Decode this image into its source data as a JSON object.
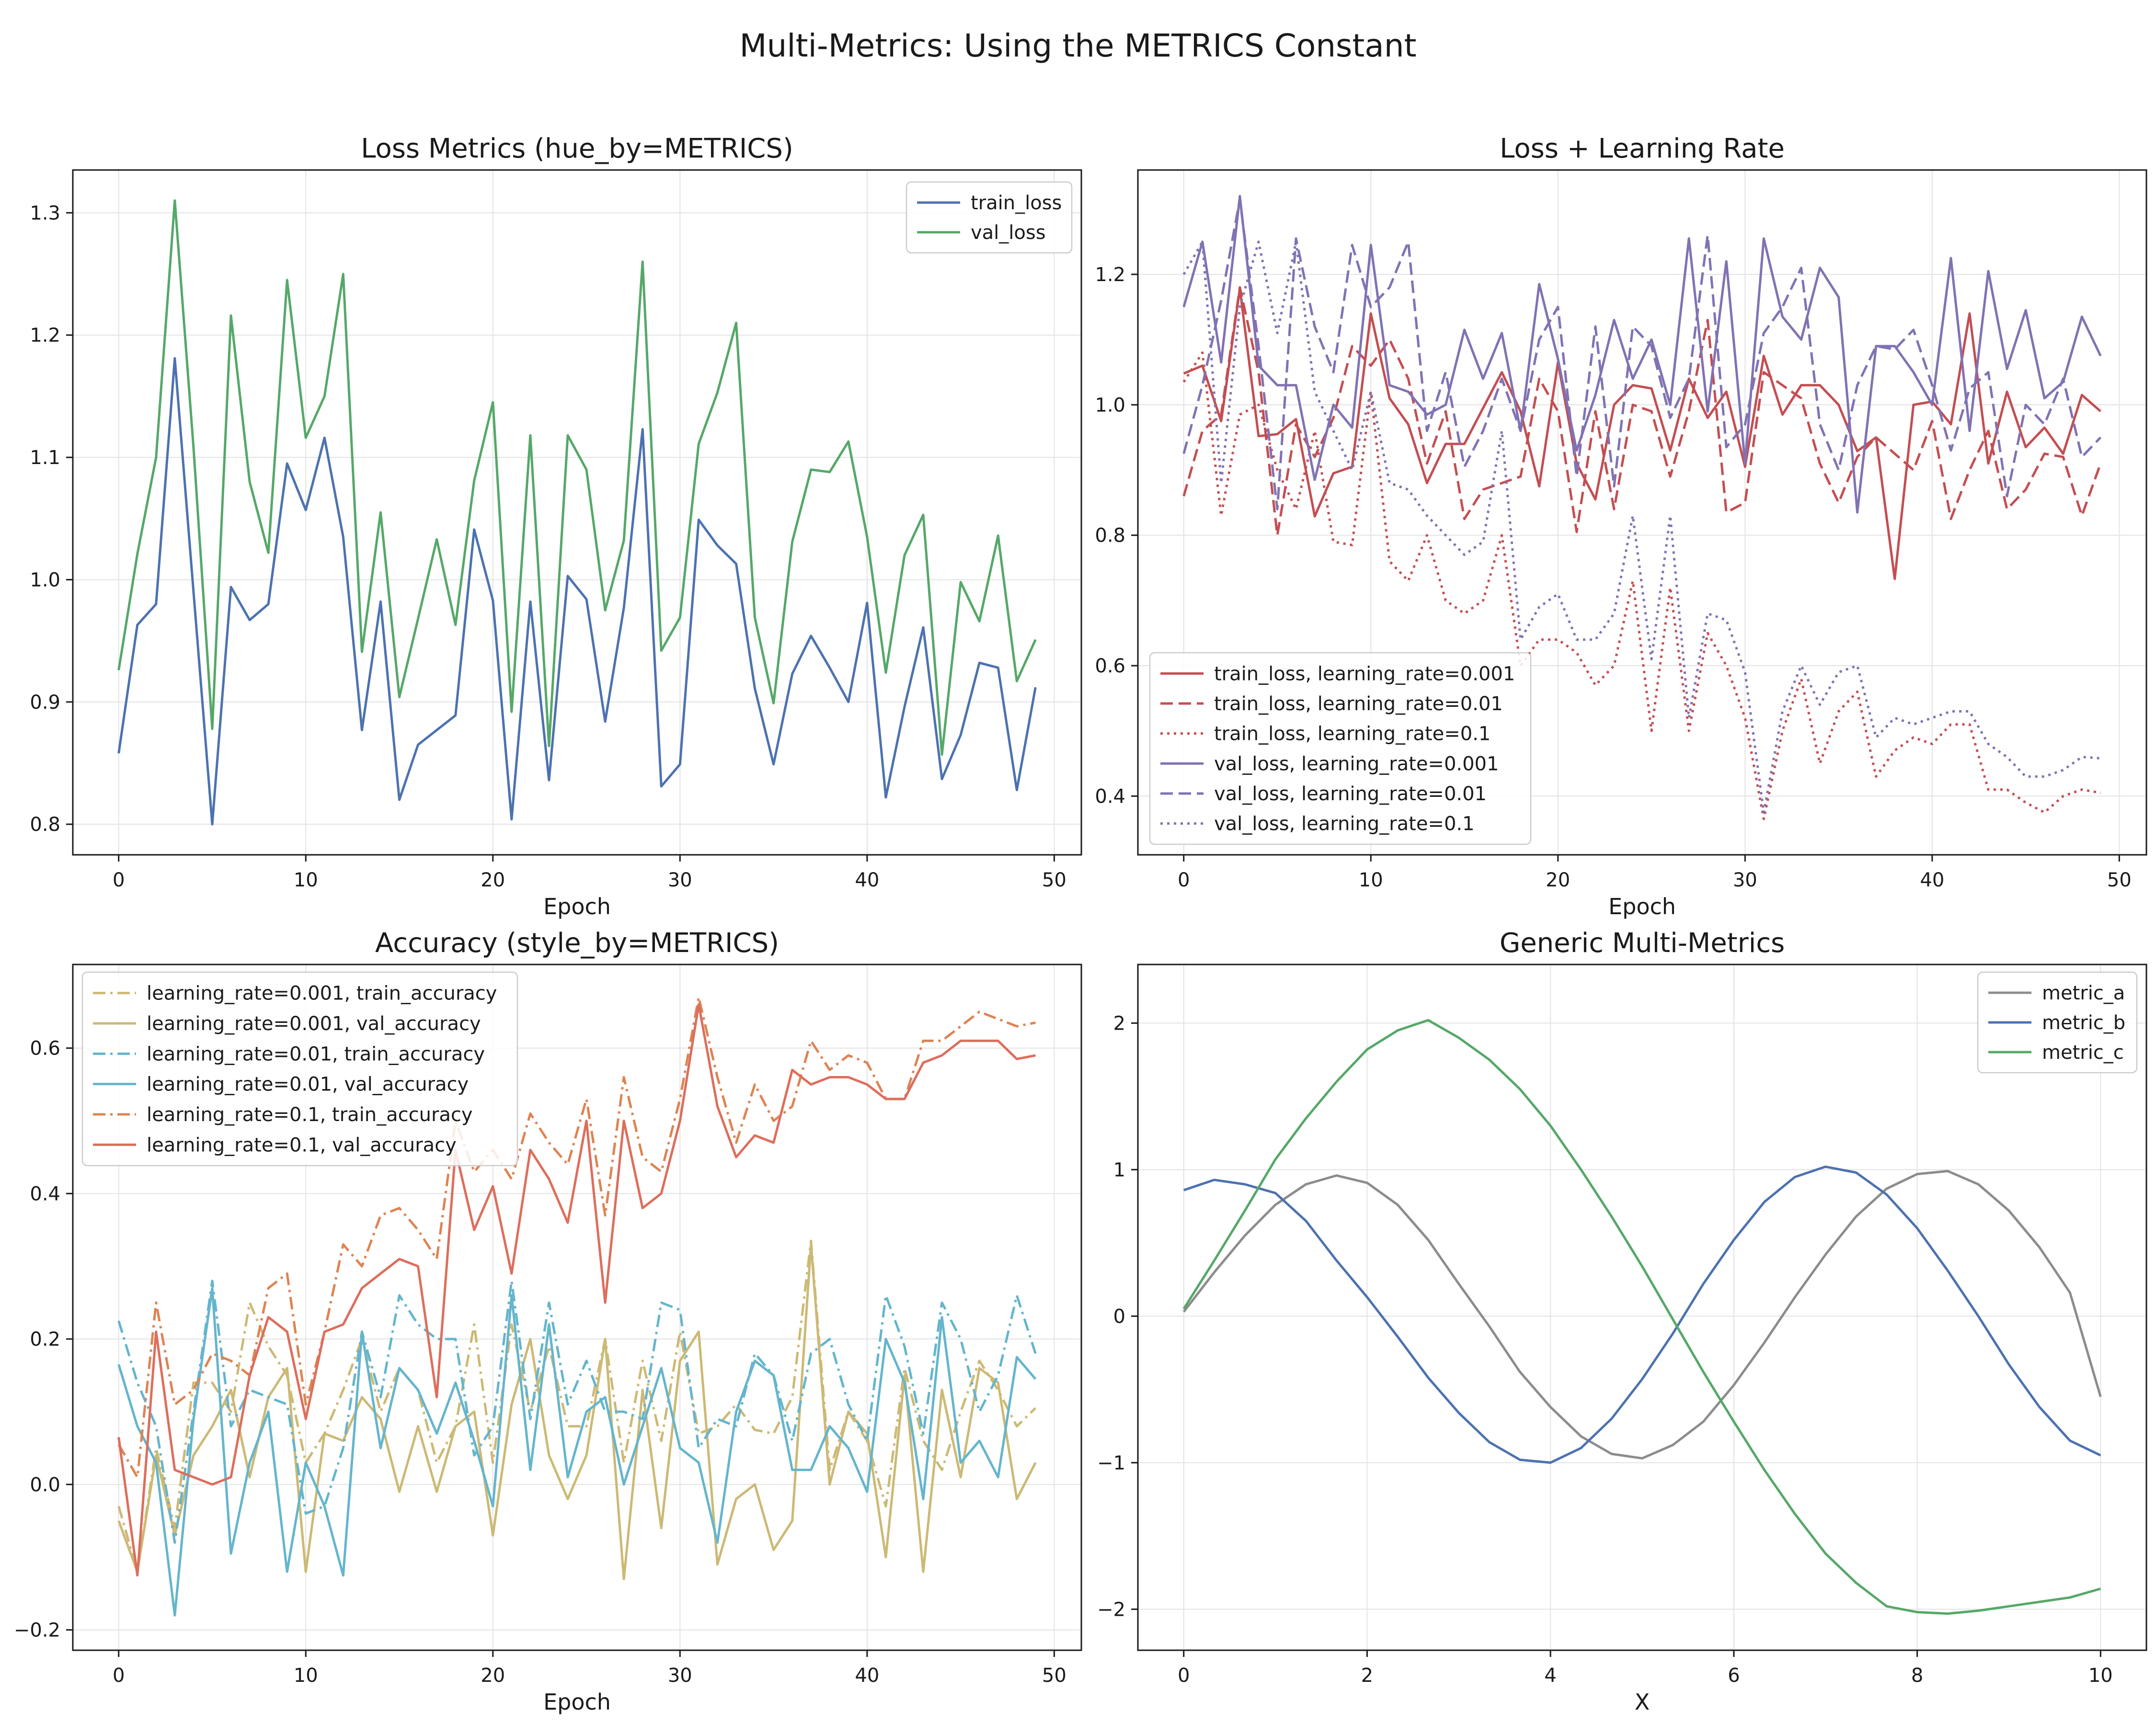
{
  "figure": {
    "title": "Multi-Metrics: Using the METRICS Constant"
  },
  "colors": {
    "blue": "#4c72b0",
    "green": "#55a868",
    "red": "#c44e52",
    "purple": "#8172b3",
    "gold": "#ccb974",
    "cyan": "#64b5cd",
    "salmon": "#dd8452",
    "coral": "#dd6e5c",
    "gray": "#8c8c8c"
  },
  "chart_data": [
    {
      "type": "line",
      "title": "Loss Metrics (hue_by=METRICS)",
      "xlabel": "Epoch",
      "ylabel": "",
      "xlim": [
        -2.45,
        51.45
      ],
      "ylim": [
        0.775,
        1.335
      ],
      "xticks": [
        0,
        10,
        20,
        30,
        40,
        50
      ],
      "yticks": [
        0.8,
        0.9,
        1.0,
        1.1,
        1.2,
        1.3
      ],
      "ytick_decimals": 1,
      "grid": true,
      "legend": "top-right",
      "series": [
        {
          "name": "train_loss",
          "color": "#4c72b0",
          "dash": "solid",
          "y": [
            0.858,
            0.963,
            0.98,
            1.181,
            0.99,
            0.8,
            0.994,
            0.967,
            0.98,
            1.095,
            1.057,
            1.116,
            1.035,
            0.877,
            0.982,
            0.82,
            0.865,
            0.877,
            0.889,
            1.041,
            0.983,
            0.804,
            0.982,
            0.836,
            1.003,
            0.984,
            0.884,
            0.977,
            1.123,
            0.831,
            0.849,
            1.049,
            1.028,
            1.013,
            0.911,
            0.849,
            0.923,
            0.954,
            0.928,
            0.9,
            0.981,
            0.822,
            0.896,
            0.961,
            0.837,
            0.873,
            0.932,
            0.928,
            0.828,
            0.912
          ]
        },
        {
          "name": "val_loss",
          "color": "#55a868",
          "dash": "solid",
          "y": [
            0.926,
            1.021,
            1.1,
            1.31,
            1.108,
            0.878,
            1.216,
            1.08,
            1.022,
            1.245,
            1.116,
            1.15,
            1.25,
            0.941,
            1.055,
            0.904,
            0.968,
            1.033,
            0.963,
            1.081,
            1.145,
            0.892,
            1.118,
            0.864,
            1.118,
            1.09,
            0.975,
            1.032,
            1.26,
            0.942,
            0.969,
            1.111,
            1.153,
            1.21,
            0.969,
            0.899,
            1.031,
            1.09,
            1.088,
            1.113,
            1.035,
            0.924,
            1.02,
            1.053,
            0.857,
            0.998,
            0.966,
            1.036,
            0.917,
            0.951
          ]
        }
      ]
    },
    {
      "type": "line",
      "title": "Loss + Learning Rate",
      "xlabel": "Epoch",
      "ylabel": "",
      "xlim": [
        -2.45,
        51.45
      ],
      "ylim": [
        0.31,
        1.36
      ],
      "xticks": [
        0,
        10,
        20,
        30,
        40,
        50
      ],
      "yticks": [
        0.4,
        0.6,
        0.8,
        1.0,
        1.2
      ],
      "ytick_decimals": 1,
      "grid": true,
      "legend": "bottom-left",
      "series": [
        {
          "name": "train_loss, learning_rate=0.001",
          "color": "#c44e52",
          "dash": "solid",
          "y": [
            1.048,
            1.06,
            0.975,
            1.178,
            0.952,
            0.955,
            0.978,
            0.829,
            0.895,
            0.905,
            1.14,
            1.01,
            0.97,
            0.88,
            0.94,
            0.94,
            0.995,
            1.05,
            0.99,
            0.875,
            1.065,
            0.91,
            0.855,
            1.0,
            1.03,
            1.025,
            0.93,
            1.04,
            0.98,
            1.02,
            0.905,
            1.075,
            0.985,
            1.03,
            1.03,
            1.0,
            0.929,
            0.95,
            0.733,
            1.0,
            1.005,
            0.97,
            1.14,
            0.91,
            1.02,
            0.935,
            0.965,
            0.925,
            1.015,
            0.99
          ]
        },
        {
          "name": "train_loss, learning_rate=0.01",
          "color": "#c44e52",
          "dash": "dashed",
          "y": [
            0.86,
            0.96,
            0.985,
            1.18,
            1.05,
            0.8,
            0.97,
            0.92,
            0.98,
            1.09,
            1.06,
            1.1,
            1.04,
            0.91,
            0.99,
            0.825,
            0.87,
            0.88,
            0.89,
            1.04,
            0.99,
            0.805,
            0.99,
            0.84,
            1.0,
            0.99,
            0.89,
            0.99,
            1.13,
            0.835,
            0.85,
            1.05,
            1.03,
            1.01,
            0.91,
            0.85,
            0.92,
            0.95,
            0.925,
            0.9,
            0.975,
            0.825,
            0.9,
            0.96,
            0.84,
            0.87,
            0.925,
            0.92,
            0.83,
            0.91
          ]
        },
        {
          "name": "train_loss, learning_rate=0.1",
          "color": "#c44e52",
          "dash": "dotted",
          "y": [
            1.035,
            1.08,
            0.83,
            0.985,
            1.0,
            0.9,
            0.84,
            0.96,
            0.79,
            0.785,
            1.02,
            0.76,
            0.73,
            0.8,
            0.7,
            0.68,
            0.7,
            0.8,
            0.6,
            0.64,
            0.64,
            0.62,
            0.57,
            0.6,
            0.73,
            0.5,
            0.72,
            0.5,
            0.65,
            0.6,
            0.52,
            0.365,
            0.5,
            0.58,
            0.45,
            0.53,
            0.56,
            0.43,
            0.47,
            0.49,
            0.48,
            0.51,
            0.51,
            0.41,
            0.41,
            0.39,
            0.375,
            0.4,
            0.41,
            0.405
          ]
        },
        {
          "name": "val_loss, learning_rate=0.001",
          "color": "#8172b3",
          "dash": "solid",
          "y": [
            1.15,
            1.25,
            1.065,
            1.32,
            1.06,
            1.03,
            1.03,
            0.885,
            1.0,
            0.965,
            1.245,
            1.03,
            1.02,
            0.985,
            1.0,
            1.115,
            1.04,
            1.11,
            0.96,
            1.185,
            1.07,
            0.93,
            1.015,
            1.13,
            1.04,
            1.1,
            1.0,
            1.255,
            0.99,
            1.22,
            0.91,
            1.255,
            1.135,
            1.1,
            1.21,
            1.165,
            0.835,
            1.09,
            1.09,
            1.05,
            1.0,
            1.225,
            0.96,
            1.205,
            1.055,
            1.145,
            1.01,
            1.035,
            1.135,
            1.075
          ]
        },
        {
          "name": "val_loss, learning_rate=0.01",
          "color": "#8172b3",
          "dash": "dashed",
          "y": [
            0.925,
            1.03,
            1.16,
            1.315,
            1.09,
            0.84,
            1.255,
            1.12,
            1.05,
            1.245,
            1.15,
            1.18,
            1.25,
            0.96,
            1.05,
            0.905,
            0.96,
            1.04,
            0.96,
            1.1,
            1.15,
            0.89,
            1.12,
            0.875,
            1.12,
            1.09,
            0.98,
            1.04,
            1.26,
            0.935,
            0.97,
            1.11,
            1.15,
            1.21,
            0.97,
            0.9,
            1.03,
            1.09,
            1.085,
            1.115,
            1.03,
            0.93,
            1.025,
            1.05,
            0.86,
            1.0,
            0.97,
            1.04,
            0.92,
            0.95
          ]
        },
        {
          "name": "val_loss, learning_rate=0.1",
          "color": "#8172b3",
          "dash": "dotted",
          "y": [
            1.2,
            1.25,
            0.88,
            1.15,
            1.25,
            1.11,
            1.25,
            1.02,
            0.96,
            0.9,
            1.02,
            0.88,
            0.87,
            0.83,
            0.8,
            0.77,
            0.79,
            0.96,
            0.64,
            0.69,
            0.71,
            0.64,
            0.64,
            0.68,
            0.83,
            0.61,
            0.83,
            0.52,
            0.68,
            0.67,
            0.59,
            0.375,
            0.53,
            0.6,
            0.54,
            0.59,
            0.6,
            0.49,
            0.52,
            0.51,
            0.52,
            0.53,
            0.53,
            0.48,
            0.46,
            0.43,
            0.43,
            0.44,
            0.46,
            0.458
          ]
        }
      ]
    },
    {
      "type": "line",
      "title": "Accuracy (style_by=METRICS)",
      "xlabel": "Epoch",
      "ylabel": "",
      "xlim": [
        -2.45,
        51.45
      ],
      "ylim": [
        -0.228,
        0.715
      ],
      "xticks": [
        0,
        10,
        20,
        30,
        40,
        50
      ],
      "yticks": [
        -0.2,
        0.0,
        0.2,
        0.4,
        0.6
      ],
      "ytick_decimals": 1,
      "grid": true,
      "legend": "top-left",
      "series": [
        {
          "name": "learning_rate=0.001, train_accuracy",
          "color": "#ccb974",
          "dash": "dashdot",
          "y": [
            -0.03,
            -0.12,
            0.05,
            -0.06,
            0.14,
            0.14,
            0.1,
            0.25,
            0.19,
            0.15,
            0.03,
            0.07,
            0.13,
            0.2,
            0.1,
            0.16,
            0.13,
            0.03,
            0.08,
            0.22,
            0.03,
            0.22,
            0.1,
            0.19,
            0.08,
            0.08,
            0.2,
            0.03,
            0.17,
            0.06,
            0.21,
            0.07,
            0.08,
            0.11,
            0.075,
            0.07,
            0.12,
            0.335,
            0.02,
            0.1,
            0.06,
            -0.03,
            0.16,
            0.06,
            0.02,
            0.1,
            0.17,
            0.13,
            0.08,
            0.105
          ]
        },
        {
          "name": "learning_rate=0.001, val_accuracy",
          "color": "#ccb974",
          "dash": "solid",
          "y": [
            -0.05,
            -0.12,
            0.04,
            -0.07,
            0.04,
            0.08,
            0.13,
            0.01,
            0.12,
            0.16,
            -0.12,
            0.07,
            0.06,
            0.12,
            0.09,
            -0.01,
            0.08,
            -0.01,
            0.08,
            0.1,
            -0.07,
            0.11,
            0.2,
            0.04,
            -0.02,
            0.04,
            0.2,
            -0.13,
            0.13,
            -0.06,
            0.17,
            0.21,
            -0.11,
            -0.02,
            0.0,
            -0.09,
            -0.05,
            0.33,
            0.0,
            0.1,
            0.07,
            -0.1,
            0.15,
            -0.12,
            0.13,
            0.01,
            0.16,
            0.14,
            -0.02,
            0.03
          ]
        },
        {
          "name": "learning_rate=0.01, train_accuracy",
          "color": "#64b5cd",
          "dash": "dashdot",
          "y": [
            0.225,
            0.14,
            0.08,
            -0.08,
            0.1,
            0.28,
            0.08,
            0.13,
            0.12,
            0.11,
            -0.04,
            -0.03,
            0.05,
            0.21,
            0.12,
            0.26,
            0.22,
            0.2,
            0.2,
            0.04,
            0.08,
            0.28,
            0.09,
            0.25,
            0.11,
            0.17,
            0.1,
            0.1,
            0.09,
            0.25,
            0.24,
            0.05,
            0.09,
            0.08,
            0.18,
            0.15,
            0.06,
            0.18,
            0.2,
            0.11,
            0.06,
            0.26,
            0.19,
            0.07,
            0.25,
            0.2,
            0.1,
            0.15,
            0.26,
            0.18
          ]
        },
        {
          "name": "learning_rate=0.01, val_accuracy",
          "color": "#64b5cd",
          "dash": "solid",
          "y": [
            0.165,
            0.08,
            0.03,
            -0.18,
            0.09,
            0.27,
            -0.095,
            0.03,
            0.1,
            -0.12,
            0.03,
            -0.03,
            -0.125,
            0.21,
            0.05,
            0.16,
            0.13,
            0.07,
            0.14,
            0.06,
            -0.03,
            0.26,
            0.02,
            0.22,
            0.01,
            0.1,
            0.12,
            0.0,
            0.08,
            0.16,
            0.05,
            0.03,
            -0.08,
            0.1,
            0.17,
            0.15,
            0.02,
            0.02,
            0.08,
            0.05,
            -0.01,
            0.2,
            0.14,
            -0.02,
            0.23,
            0.03,
            0.06,
            0.01,
            0.175,
            0.145
          ]
        },
        {
          "name": "learning_rate=0.1, train_accuracy",
          "color": "#dd8452",
          "dash": "dashdot",
          "y": [
            0.055,
            0.01,
            0.25,
            0.11,
            0.13,
            0.18,
            0.17,
            0.15,
            0.27,
            0.29,
            0.11,
            0.21,
            0.33,
            0.3,
            0.37,
            0.38,
            0.35,
            0.31,
            0.5,
            0.43,
            0.46,
            0.42,
            0.51,
            0.47,
            0.44,
            0.53,
            0.37,
            0.56,
            0.45,
            0.43,
            0.53,
            0.67,
            0.56,
            0.47,
            0.55,
            0.5,
            0.52,
            0.61,
            0.57,
            0.59,
            0.58,
            0.53,
            0.53,
            0.61,
            0.61,
            0.63,
            0.65,
            0.64,
            0.63,
            0.635
          ]
        },
        {
          "name": "learning_rate=0.1, val_accuracy",
          "color": "#dd6e5c",
          "dash": "solid",
          "y": [
            0.065,
            -0.125,
            0.21,
            0.02,
            0.01,
            0.0,
            0.01,
            0.15,
            0.23,
            0.21,
            0.09,
            0.21,
            0.22,
            0.27,
            0.29,
            0.31,
            0.3,
            0.12,
            0.46,
            0.35,
            0.41,
            0.29,
            0.46,
            0.42,
            0.36,
            0.5,
            0.25,
            0.5,
            0.38,
            0.4,
            0.5,
            0.66,
            0.52,
            0.45,
            0.48,
            0.47,
            0.57,
            0.55,
            0.56,
            0.56,
            0.55,
            0.53,
            0.53,
            0.58,
            0.59,
            0.61,
            0.61,
            0.61,
            0.585,
            0.59
          ]
        }
      ]
    },
    {
      "type": "line",
      "title": "Generic Multi-Metrics",
      "xlabel": "X",
      "ylabel": "",
      "xlim": [
        -0.5,
        10.5
      ],
      "ylim": [
        -2.28,
        2.4
      ],
      "xticks": [
        0,
        2,
        4,
        6,
        8,
        10
      ],
      "yticks": [
        -2,
        -1,
        0,
        1,
        2
      ],
      "ytick_decimals": 0,
      "grid": true,
      "legend": "top-right",
      "x_range": [
        0,
        10
      ],
      "series": [
        {
          "name": "metric_a",
          "color": "#8c8c8c",
          "dash": "solid",
          "y": [
            0.03,
            0.3,
            0.55,
            0.76,
            0.9,
            0.96,
            0.91,
            0.76,
            0.52,
            0.22,
            -0.07,
            -0.38,
            -0.62,
            -0.82,
            -0.94,
            -0.97,
            -0.88,
            -0.72,
            -0.47,
            -0.18,
            0.13,
            0.42,
            0.68,
            0.87,
            0.97,
            0.99,
            0.9,
            0.72,
            0.47,
            0.16,
            -0.55
          ]
        },
        {
          "name": "metric_b",
          "color": "#4c72b0",
          "dash": "solid",
          "y": [
            0.86,
            0.93,
            0.9,
            0.84,
            0.65,
            0.38,
            0.13,
            -0.14,
            -0.42,
            -0.66,
            -0.86,
            -0.98,
            -1.0,
            -0.9,
            -0.7,
            -0.43,
            -0.12,
            0.22,
            0.52,
            0.78,
            0.95,
            1.02,
            0.98,
            0.83,
            0.6,
            0.31,
            0.0,
            -0.33,
            -0.62,
            -0.85,
            -0.95
          ]
        },
        {
          "name": "metric_c",
          "color": "#55a868",
          "dash": "solid",
          "y": [
            0.05,
            0.38,
            0.72,
            1.07,
            1.35,
            1.6,
            1.82,
            1.95,
            2.02,
            1.9,
            1.75,
            1.55,
            1.3,
            1.0,
            0.68,
            0.34,
            -0.02,
            -0.38,
            -0.72,
            -1.05,
            -1.35,
            -1.62,
            -1.82,
            -1.98,
            -2.02,
            -2.03,
            -2.01,
            -1.98,
            -1.95,
            -1.92,
            -1.86
          ]
        }
      ]
    }
  ]
}
